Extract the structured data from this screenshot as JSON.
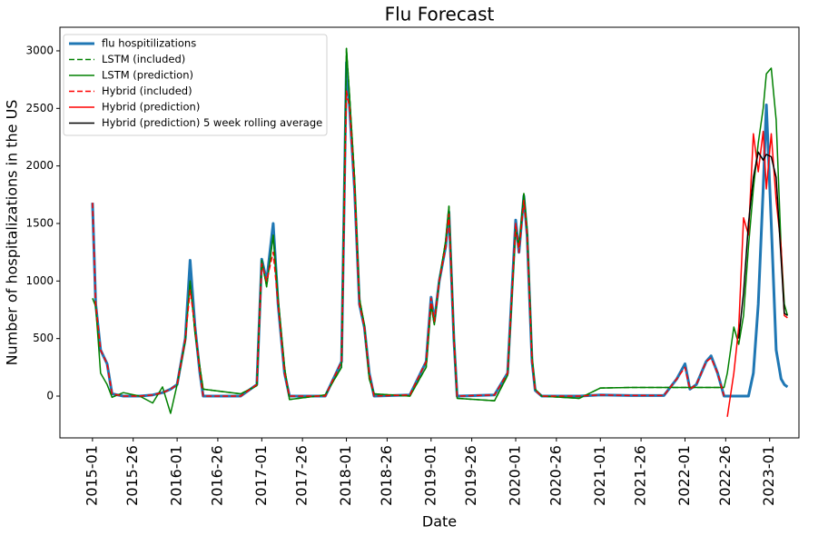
{
  "chart_data": {
    "type": "line",
    "title": "Flu Forecast",
    "xlabel": "Date",
    "ylabel": "Number of hospitalizations in the US",
    "x": [
      "2015-01",
      "2015-03",
      "2015-06",
      "2015-10",
      "2015-13",
      "2015-20",
      "2015-30",
      "2015-38",
      "2015-44",
      "2015-49",
      "2016-01",
      "2016-06",
      "2016-09",
      "2016-12",
      "2016-15",
      "2016-17",
      "2016-40",
      "2016-50",
      "2017-01",
      "2017-04",
      "2017-08",
      "2017-11",
      "2017-15",
      "2017-18",
      "2017-40",
      "2017-50",
      "2018-01",
      "2018-03",
      "2018-06",
      "2018-09",
      "2018-12",
      "2018-15",
      "2018-18",
      "2018-40",
      "2018-50",
      "2019-01",
      "2019-03",
      "2019-06",
      "2019-10",
      "2019-12",
      "2019-15",
      "2019-17",
      "2019-40",
      "2019-48",
      "2020-01",
      "2020-03",
      "2020-06",
      "2020-08",
      "2020-11",
      "2020-13",
      "2020-17",
      "2020-40",
      "2021-01",
      "2021-20",
      "2021-40",
      "2021-48",
      "2022-01",
      "2022-04",
      "2022-08",
      "2022-14",
      "2022-17",
      "2022-21",
      "2022-25",
      "2022-27",
      "2022-31",
      "2022-34",
      "2022-37",
      "2022-40",
      "2022-43",
      "2022-46",
      "2022-49",
      "2022-51",
      "2023-02",
      "2023-05",
      "2023-08",
      "2023-10",
      "2023-12"
    ],
    "series": [
      {
        "name": "flu hospitilizations",
        "color": "#1f77b4",
        "width": 3,
        "dashed": false,
        "values": [
          1680,
          800,
          400,
          280,
          20,
          0,
          0,
          10,
          30,
          60,
          100,
          500,
          1180,
          600,
          200,
          0,
          0,
          100,
          1190,
          1000,
          1500,
          800,
          200,
          0,
          0,
          300,
          2900,
          2500,
          1800,
          800,
          600,
          200,
          0,
          10,
          300,
          860,
          650,
          1000,
          1300,
          1600,
          500,
          0,
          10,
          200,
          1530,
          1250,
          1740,
          1400,
          300,
          50,
          0,
          0,
          10,
          5,
          5,
          150,
          280,
          60,
          100,
          300,
          350,
          200,
          0,
          0,
          0,
          0,
          0,
          0,
          200,
          800,
          1800,
          2530,
          1500,
          400,
          150,
          100,
          80
        ]
      },
      {
        "name": "LSTM (included)",
        "color": "#008000",
        "width": 1.5,
        "dashed": true,
        "values": [
          null,
          null,
          null,
          null,
          null,
          null,
          null,
          null,
          null,
          null,
          100,
          480,
          1000,
          550,
          250,
          60,
          20,
          90,
          1180,
          950,
          1400,
          850,
          250,
          -30,
          10,
          250,
          3020,
          2600,
          1900,
          850,
          620,
          150,
          20,
          0,
          250,
          800,
          620,
          1000,
          1350,
          1650,
          520,
          -20,
          -40,
          180,
          1450,
          1300,
          1760,
          1450,
          350,
          60,
          0,
          -20,
          70,
          75,
          75,
          75,
          75,
          75,
          75,
          75,
          75,
          75,
          75,
          null,
          null,
          null,
          null,
          null,
          null,
          null,
          null,
          null,
          null,
          null,
          null,
          null,
          null
        ]
      },
      {
        "name": "LSTM (prediction)",
        "color": "#008000",
        "width": 1.5,
        "dashed": false,
        "values": [
          850,
          780,
          200,
          100,
          -10,
          30,
          0,
          -60,
          80,
          -150,
          100,
          480,
          1000,
          550,
          250,
          60,
          20,
          90,
          1180,
          950,
          1400,
          850,
          250,
          -30,
          10,
          250,
          3020,
          2600,
          1900,
          850,
          620,
          150,
          20,
          0,
          250,
          800,
          620,
          1000,
          1350,
          1650,
          520,
          -20,
          -40,
          180,
          1450,
          1300,
          1760,
          1450,
          350,
          60,
          0,
          -20,
          70,
          75,
          75,
          75,
          75,
          75,
          75,
          75,
          75,
          75,
          75,
          200,
          600,
          450,
          700,
          1300,
          1800,
          2200,
          2500,
          2800,
          2850,
          2400,
          1300,
          800,
          700
        ]
      },
      {
        "name": "Hybrid (included)",
        "color": "#ff0000",
        "width": 1.5,
        "dashed": true,
        "values": [
          1680,
          800,
          400,
          280,
          20,
          0,
          0,
          10,
          30,
          60,
          100,
          500,
          920,
          600,
          200,
          0,
          0,
          100,
          1150,
          1000,
          1250,
          800,
          200,
          0,
          0,
          300,
          2650,
          2500,
          1800,
          800,
          600,
          200,
          0,
          10,
          300,
          850,
          650,
          1000,
          1300,
          1580,
          500,
          0,
          10,
          200,
          1500,
          1250,
          1700,
          1400,
          300,
          50,
          0,
          0,
          10,
          5,
          5,
          150,
          250,
          60,
          100,
          300,
          330,
          200,
          0,
          null,
          null,
          null,
          null,
          null,
          null,
          null,
          null,
          null,
          null,
          null,
          null,
          null,
          null
        ]
      },
      {
        "name": "Hybrid (prediction)",
        "color": "#ff0000",
        "width": 1.5,
        "dashed": false,
        "values": [
          null,
          null,
          null,
          null,
          null,
          null,
          null,
          null,
          null,
          null,
          null,
          null,
          null,
          null,
          null,
          null,
          null,
          null,
          null,
          null,
          null,
          null,
          null,
          null,
          null,
          null,
          null,
          null,
          null,
          null,
          null,
          null,
          null,
          null,
          null,
          null,
          null,
          null,
          null,
          null,
          null,
          null,
          null,
          null,
          null,
          null,
          null,
          null,
          null,
          null,
          null,
          null,
          null,
          null,
          null,
          null,
          null,
          null,
          null,
          null,
          null,
          null,
          null,
          -180,
          200,
          600,
          1550,
          1400,
          2280,
          1950,
          2300,
          1800,
          2280,
          1700,
          1300,
          700,
          680
        ]
      },
      {
        "name": "Hybrid (prediction) 5 week rolling average",
        "color": "#000000",
        "width": 1.5,
        "dashed": false,
        "values": [
          null,
          null,
          null,
          null,
          null,
          null,
          null,
          null,
          null,
          null,
          null,
          null,
          null,
          null,
          null,
          null,
          null,
          null,
          null,
          null,
          null,
          null,
          null,
          null,
          null,
          null,
          null,
          null,
          null,
          null,
          null,
          null,
          null,
          null,
          null,
          null,
          null,
          null,
          null,
          null,
          null,
          null,
          null,
          null,
          null,
          null,
          null,
          null,
          null,
          null,
          null,
          null,
          null,
          null,
          null,
          null,
          null,
          null,
          null,
          null,
          null,
          null,
          null,
          null,
          null,
          500,
          900,
          1500,
          1900,
          2120,
          2050,
          2100,
          2080,
          1900,
          1200,
          720,
          700
        ]
      }
    ],
    "xlim": [
      "2014-33",
      "2023-19"
    ],
    "xticks": [
      "2015-01",
      "2015-26",
      "2016-01",
      "2016-26",
      "2017-01",
      "2017-26",
      "2018-01",
      "2018-26",
      "2019-01",
      "2019-26",
      "2020-01",
      "2020-26",
      "2021-01",
      "2021-26",
      "2022-01",
      "2022-26",
      "2023-01"
    ],
    "ylim": [
      -363,
      3205
    ],
    "yticks": [
      0,
      500,
      1000,
      1500,
      2000,
      2500,
      3000
    ],
    "legend": "upper left"
  }
}
